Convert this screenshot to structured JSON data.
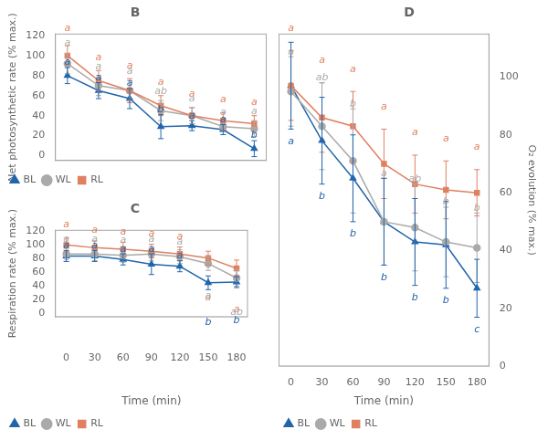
{
  "chart_data": [
    {
      "type": "line",
      "title": "B",
      "ylabel": "Net photosynthetic rate (% max.)",
      "x": [
        0,
        30,
        60,
        90,
        120,
        150,
        180
      ],
      "xlim": [
        -12,
        192
      ],
      "xticks": [
        0,
        30,
        60,
        90,
        120,
        150,
        180
      ],
      "ylim": [
        -5,
        122
      ],
      "yticks": [
        0,
        20,
        40,
        60,
        80,
        100,
        120
      ],
      "tick_labels": "y",
      "grid": false,
      "legend": "lower left",
      "series": [
        {
          "name": "RL",
          "color": "#e08060",
          "marker": "square",
          "values": [
            100,
            75,
            65,
            50,
            40,
            35,
            32
          ],
          "errors": [
            10,
            10,
            12,
            10,
            8,
            8,
            8
          ]
        },
        {
          "name": "WL",
          "color": "#aaaaaa",
          "marker": "circle",
          "values": [
            92,
            70,
            65,
            45,
            40,
            29,
            27
          ],
          "errors": [
            10,
            10,
            10,
            10,
            8,
            5,
            8
          ]
        },
        {
          "name": "BL",
          "color": "#2166ac",
          "marker": "triangle",
          "values": [
            80,
            65,
            57,
            29,
            30,
            26,
            7
          ],
          "errors": [
            8,
            8,
            10,
            12,
            5,
            5,
            8
          ]
        }
      ],
      "annotations": [
        {
          "text": "a",
          "x": 0,
          "y": 122,
          "color": "#e08060"
        },
        {
          "text": "a",
          "x": 0,
          "y": 108,
          "color": "#aaaaaa"
        },
        {
          "text": "a",
          "x": 0,
          "y": 88,
          "color": "#2166ac"
        },
        {
          "text": "a",
          "x": 30,
          "y": 93,
          "color": "#e08060"
        },
        {
          "text": "a",
          "x": 30,
          "y": 84,
          "color": "#aaaaaa"
        },
        {
          "text": "a",
          "x": 30,
          "y": 73,
          "color": "#2166ac"
        },
        {
          "text": "a",
          "x": 60,
          "y": 85,
          "color": "#e08060"
        },
        {
          "text": "a",
          "x": 60,
          "y": 79,
          "color": "#aaaaaa"
        },
        {
          "text": "a",
          "x": 60,
          "y": 67,
          "color": "#2166ac"
        },
        {
          "text": "a",
          "x": 90,
          "y": 68,
          "color": "#e08060"
        },
        {
          "text": "ab",
          "x": 90,
          "y": 59,
          "color": "#aaaaaa"
        },
        {
          "text": "b",
          "x": 90,
          "y": 41,
          "color": "#2166ac"
        },
        {
          "text": "a",
          "x": 120,
          "y": 56,
          "color": "#e08060"
        },
        {
          "text": "a",
          "x": 120,
          "y": 52,
          "color": "#aaaaaa"
        },
        {
          "text": "a",
          "x": 120,
          "y": 35,
          "color": "#2166ac"
        },
        {
          "text": "a",
          "x": 150,
          "y": 51,
          "color": "#e08060"
        },
        {
          "text": "a",
          "x": 150,
          "y": 38,
          "color": "#aaaaaa"
        },
        {
          "text": "a",
          "x": 150,
          "y": 31,
          "color": "#2166ac"
        },
        {
          "text": "a",
          "x": 180,
          "y": 48,
          "color": "#e08060"
        },
        {
          "text": "a",
          "x": 180,
          "y": 39,
          "color": "#aaaaaa"
        },
        {
          "text": "b",
          "x": 180,
          "y": 15,
          "color": "#2166ac"
        }
      ]
    },
    {
      "type": "line",
      "title": "C",
      "xlabel": "Time (min)",
      "ylabel": "Respiration rate (% max.)",
      "x": [
        0,
        30,
        60,
        90,
        120,
        150,
        180
      ],
      "xlim": [
        -12,
        192
      ],
      "xticks": [
        0,
        30,
        60,
        90,
        120,
        150,
        180
      ],
      "ylim": [
        -5,
        122
      ],
      "yticks": [
        0,
        20,
        40,
        60,
        80,
        100,
        120
      ],
      "grid": false,
      "legend": "lower left",
      "series": [
        {
          "name": "RL",
          "color": "#e08060",
          "marker": "square",
          "values": [
            100,
            96,
            94,
            91,
            87,
            81,
            66
          ],
          "errors": [
            10,
            10,
            10,
            10,
            10,
            10,
            12
          ]
        },
        {
          "name": "WL",
          "color": "#aaaaaa",
          "marker": "circle",
          "values": [
            87,
            87,
            85,
            87,
            83,
            73,
            52
          ],
          "errors": [
            8,
            10,
            10,
            10,
            10,
            10,
            12
          ]
        },
        {
          "name": "BL",
          "color": "#2166ac",
          "marker": "triangle",
          "values": [
            84,
            84,
            79,
            72,
            69,
            45,
            46
          ],
          "errors": [
            8,
            8,
            8,
            15,
            8,
            10,
            8
          ]
        }
      ],
      "annotations": [
        {
          "text": "a",
          "x": 0,
          "y": 122,
          "color": "#e08060"
        },
        {
          "text": "a",
          "x": 0,
          "y": 101,
          "color": "#aaaaaa"
        },
        {
          "text": "a",
          "x": 0,
          "y": 92,
          "color": "#2166ac"
        },
        {
          "text": "a",
          "x": 30,
          "y": 114,
          "color": "#e08060"
        },
        {
          "text": "a",
          "x": 30,
          "y": 101,
          "color": "#aaaaaa"
        },
        {
          "text": "a",
          "x": 30,
          "y": 92,
          "color": "#2166ac"
        },
        {
          "text": "a",
          "x": 60,
          "y": 112,
          "color": "#e08060"
        },
        {
          "text": "a",
          "x": 60,
          "y": 99,
          "color": "#aaaaaa"
        },
        {
          "text": "a",
          "x": 60,
          "y": 87,
          "color": "#2166ac"
        },
        {
          "text": "a",
          "x": 90,
          "y": 109,
          "color": "#e08060"
        },
        {
          "text": "a",
          "x": 90,
          "y": 101,
          "color": "#aaaaaa"
        },
        {
          "text": "a",
          "x": 90,
          "y": 87,
          "color": "#2166ac"
        },
        {
          "text": "a",
          "x": 120,
          "y": 105,
          "color": "#e08060"
        },
        {
          "text": "a",
          "x": 120,
          "y": 97,
          "color": "#aaaaaa"
        },
        {
          "text": "a",
          "x": 120,
          "y": 77,
          "color": "#2166ac"
        },
        {
          "text": "a",
          "x": 150,
          "y": 16,
          "color": "#e08060"
        },
        {
          "text": "a",
          "x": 150,
          "y": 18,
          "color": "#aaaaaa"
        },
        {
          "text": "b",
          "x": 150,
          "y": -20,
          "color": "#2166ac"
        },
        {
          "text": "a",
          "x": 180,
          "y": -1,
          "color": "#e08060"
        },
        {
          "text": "ab",
          "x": 180,
          "y": -5,
          "color": "#aaaaaa"
        },
        {
          "text": "b",
          "x": 180,
          "y": -17,
          "color": "#2166ac"
        }
      ]
    },
    {
      "type": "line",
      "title": "D",
      "xlabel": "Time (min)",
      "y2label": "O₂ evolution (% max.)",
      "x": [
        0,
        30,
        60,
        90,
        120,
        150,
        180
      ],
      "xlim": [
        -12,
        192
      ],
      "xticks": [
        0,
        30,
        60,
        90,
        120,
        150,
        180
      ],
      "y2lim": [
        0,
        115
      ],
      "y2ticks": [
        0,
        20,
        40,
        60,
        80,
        100
      ],
      "grid": false,
      "legend": "lower left",
      "series": [
        {
          "name": "RL",
          "color": "#e08060",
          "marker": "square",
          "axis": "y2",
          "values": [
            97,
            86,
            83,
            70,
            63,
            61,
            60
          ],
          "errors": [
            12,
            12,
            12,
            12,
            10,
            10,
            8
          ]
        },
        {
          "name": "WL",
          "color": "#aaaaaa",
          "marker": "circle",
          "axis": "y2",
          "values": [
            95,
            83,
            71,
            50,
            48,
            43,
            41
          ],
          "errors": [
            12,
            15,
            18,
            15,
            15,
            12,
            12
          ]
        },
        {
          "name": "BL",
          "color": "#2166ac",
          "marker": "triangle",
          "axis": "y2",
          "values": [
            97,
            78,
            65,
            50,
            43,
            42,
            27
          ],
          "errors": [
            15,
            15,
            15,
            15,
            15,
            15,
            10
          ]
        }
      ],
      "annotations": [
        {
          "text": "a",
          "x": 0,
          "y": 115,
          "color": "#e08060"
        },
        {
          "text": "a",
          "x": 0,
          "y": 107,
          "color": "#aaaaaa"
        },
        {
          "text": "a",
          "x": 0,
          "y": 76,
          "color": "#2166ac"
        },
        {
          "text": "a",
          "x": 30,
          "y": 104,
          "color": "#e08060"
        },
        {
          "text": "ab",
          "x": 30,
          "y": 98,
          "color": "#aaaaaa"
        },
        {
          "text": "b",
          "x": 30,
          "y": 57,
          "color": "#2166ac"
        },
        {
          "text": "a",
          "x": 60,
          "y": 101,
          "color": "#e08060"
        },
        {
          "text": "b",
          "x": 60,
          "y": 89,
          "color": "#aaaaaa"
        },
        {
          "text": "b",
          "x": 60,
          "y": 44,
          "color": "#2166ac"
        },
        {
          "text": "a",
          "x": 90,
          "y": 88,
          "color": "#e08060"
        },
        {
          "text": "a",
          "x": 90,
          "y": 65,
          "color": "#aaaaaa"
        },
        {
          "text": "b",
          "x": 90,
          "y": 29,
          "color": "#2166ac"
        },
        {
          "text": "a",
          "x": 120,
          "y": 79,
          "color": "#e08060"
        },
        {
          "text": "ab",
          "x": 120,
          "y": 63,
          "color": "#aaaaaa"
        },
        {
          "text": "b",
          "x": 120,
          "y": 22,
          "color": "#2166ac"
        },
        {
          "text": "a",
          "x": 150,
          "y": 77,
          "color": "#e08060"
        },
        {
          "text": "b",
          "x": 150,
          "y": 55,
          "color": "#aaaaaa"
        },
        {
          "text": "b",
          "x": 150,
          "y": 21,
          "color": "#2166ac"
        },
        {
          "text": "a",
          "x": 180,
          "y": 74,
          "color": "#e08060"
        },
        {
          "text": "b",
          "x": 180,
          "y": 53,
          "color": "#aaaaaa"
        },
        {
          "text": "c",
          "x": 180,
          "y": 11,
          "color": "#2166ac"
        }
      ]
    }
  ]
}
